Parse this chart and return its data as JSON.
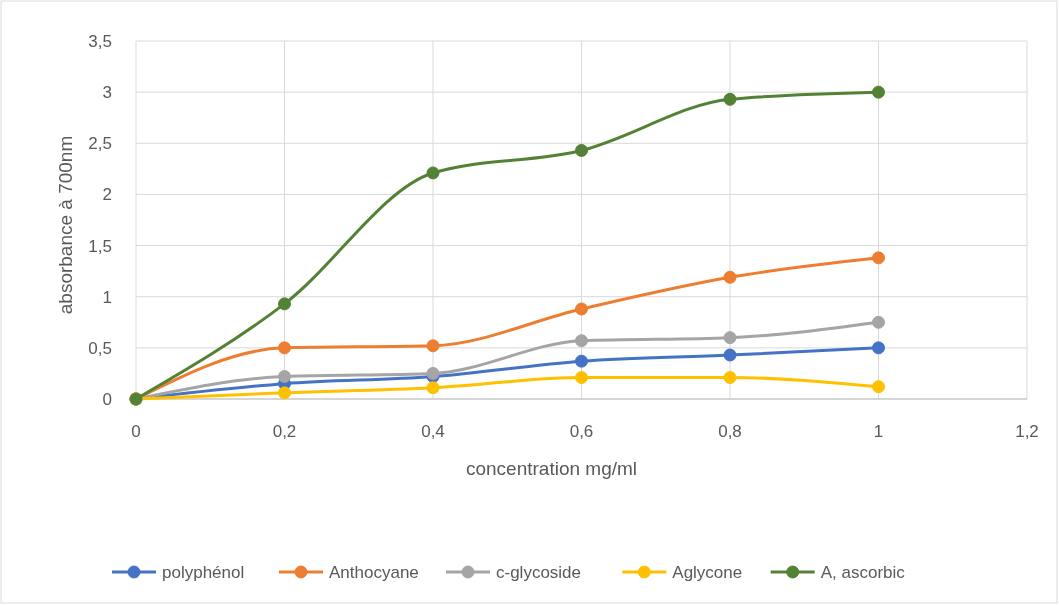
{
  "chart_data": {
    "type": "line",
    "xlabel": "concentration mg/ml",
    "ylabel": "absorbance à 700nm",
    "x": [
      0,
      0.2,
      0.4,
      0.6,
      0.8,
      1
    ],
    "series": [
      {
        "name": "polyphénol",
        "color": "#4472c4",
        "values": [
          0,
          0.15,
          0.22,
          0.37,
          0.43,
          0.5
        ]
      },
      {
        "name": "Anthocyane",
        "color": "#ed7d31",
        "values": [
          0,
          0.5,
          0.52,
          0.88,
          1.19,
          1.38
        ]
      },
      {
        "name": "c-glycoside",
        "color": "#a5a5a5",
        "values": [
          0,
          0.22,
          0.25,
          0.57,
          0.6,
          0.75
        ]
      },
      {
        "name": "Aglycone",
        "color": "#ffc000",
        "values": [
          0,
          0.06,
          0.11,
          0.21,
          0.21,
          0.12
        ]
      },
      {
        "name": "A, ascorbic",
        "color": "#548235",
        "values": [
          0,
          0.93,
          2.21,
          2.43,
          2.93,
          3.0
        ]
      }
    ],
    "xlim": [
      0,
      1.2
    ],
    "xticks": [
      0,
      {
        "value": 0.2,
        "label": "0,2"
      },
      {
        "value": 0.4,
        "label": "0,4"
      },
      {
        "value": 0.6,
        "label": "0,6"
      },
      {
        "value": 0.8,
        "label": "0,8"
      },
      1,
      {
        "value": 1.2,
        "label": "1,2"
      }
    ],
    "ylim": [
      0,
      3.5
    ],
    "yticks": [
      0,
      {
        "value": 0.5,
        "label": "0,5"
      },
      1,
      {
        "value": 1.5,
        "label": "1,5"
      },
      2,
      {
        "value": 2.5,
        "label": "2,5"
      },
      3,
      {
        "value": 3.5,
        "label": "3,5"
      }
    ],
    "grid": true,
    "legend": "bottom",
    "marker": "circle",
    "line_style": "solid"
  }
}
